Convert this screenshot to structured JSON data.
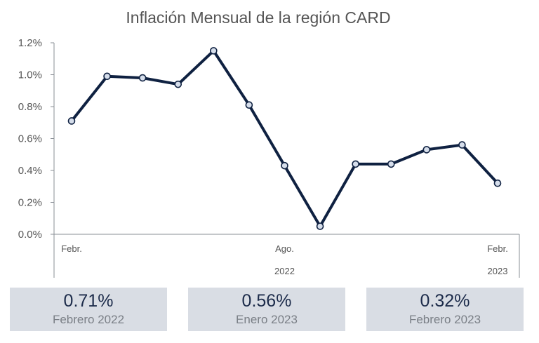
{
  "chart_data": {
    "type": "line",
    "title": "Inflación Mensual de la región CARD",
    "xlabel": "",
    "ylabel": "",
    "x": [
      "Febr.",
      "",
      "",
      "",
      "",
      "",
      "Ago.",
      "",
      "",
      "",
      "",
      "",
      "Febr."
    ],
    "year_labels": [
      {
        "label": "2022",
        "under": 6
      },
      {
        "label": "2023",
        "under": 12
      }
    ],
    "series": [
      {
        "values": [
          0.71,
          0.99,
          0.98,
          0.94,
          1.15,
          0.81,
          0.43,
          0.05,
          0.44,
          0.44,
          0.53,
          0.56,
          0.32
        ]
      }
    ],
    "ylim": [
      0,
      1.2
    ],
    "yticks": [
      "0.0%",
      "0.2%",
      "0.4%",
      "0.6%",
      "0.8%",
      "1.0%",
      "1.2%"
    ],
    "grid": false,
    "colors": {
      "line": "#0f2141",
      "marker_fill": "#d6deeb",
      "axis": "#8a8f96"
    }
  },
  "cards": [
    {
      "value": "0.71%",
      "label": "Febrero 2022"
    },
    {
      "value": "0.56%",
      "label": "Enero 2023"
    },
    {
      "value": "0.32%",
      "label": "Febrero 2023"
    }
  ]
}
